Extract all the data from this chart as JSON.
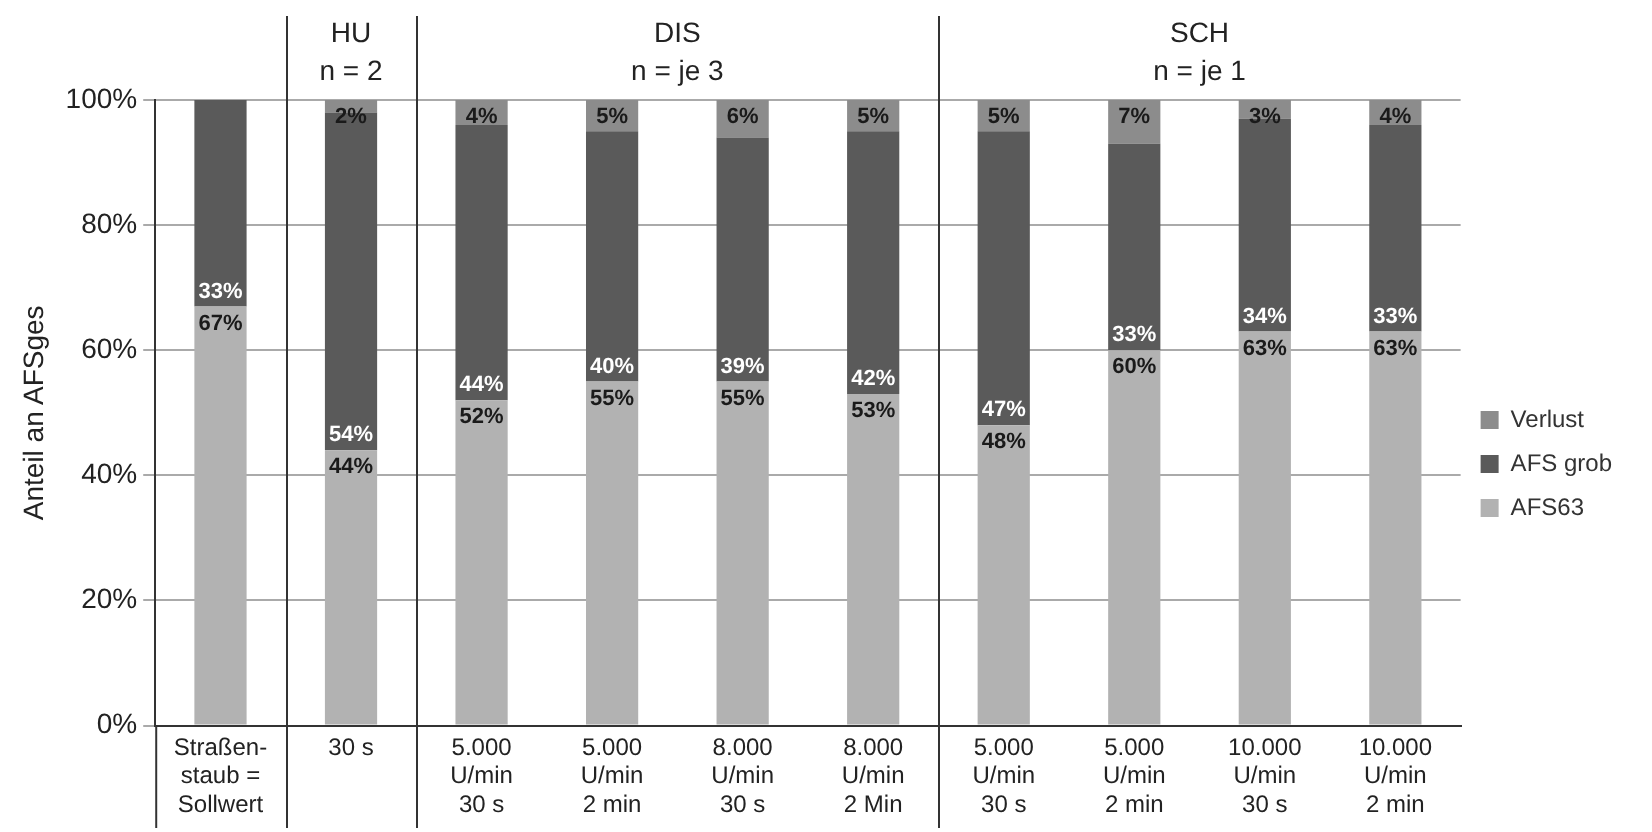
{
  "chart_data": {
    "type": "bar",
    "stacked": true,
    "ylabel": "Anteil an AFSges",
    "categories": [
      "Straßen-\nstaub =\nSollwert",
      "30 s",
      "5.000\nU/min\n30 s",
      "5.000\nU/min\n2 min",
      "8.000\nU/min\n30 s",
      "8.000\nU/min\n2 Min",
      "5.000\nU/min\n30 s",
      "5.000\nU/min\n2 min",
      "10.000\nU/min\n30 s",
      "10.000\nU/min\n2 min"
    ],
    "series": [
      {
        "name": "AFS63",
        "color": "#b2b2b2",
        "values": [
          67,
          44,
          52,
          55,
          55,
          53,
          48,
          60,
          63,
          63
        ],
        "value_labels": [
          "67%",
          "44%",
          "52%",
          "55%",
          "55%",
          "53%",
          "48%",
          "60%",
          "63%",
          "63%"
        ]
      },
      {
        "name": "AFS grob",
        "color": "#5a5a5a",
        "values": [
          33,
          54,
          44,
          40,
          39,
          42,
          47,
          33,
          34,
          33
        ],
        "value_labels": [
          "33%",
          "54%",
          "44%",
          "40%",
          "39%",
          "42%",
          "47%",
          "33%",
          "34%",
          "33%"
        ]
      },
      {
        "name": "Verlust",
        "color": "#8c8c8c",
        "values": [
          0,
          2,
          4,
          5,
          6,
          5,
          5,
          7,
          3,
          4
        ],
        "value_labels": [
          null,
          "2%",
          "4%",
          "5%",
          "6%",
          "5%",
          "5%",
          "7%",
          "3%",
          "4%"
        ]
      }
    ],
    "ylim": [
      0,
      100
    ],
    "yticks": [
      {
        "value": 0,
        "label": "0%"
      },
      {
        "value": 20,
        "label": "20%"
      },
      {
        "value": 40,
        "label": "40%"
      },
      {
        "value": 60,
        "label": "60%"
      },
      {
        "value": 80,
        "label": "80%"
      },
      {
        "value": 100,
        "label": "100%"
      }
    ],
    "grid": "y",
    "legend": "right",
    "annotations": [
      "HU\nn = 2",
      "DIS\nn = je 3",
      "SCH\nn = je 1"
    ]
  }
}
